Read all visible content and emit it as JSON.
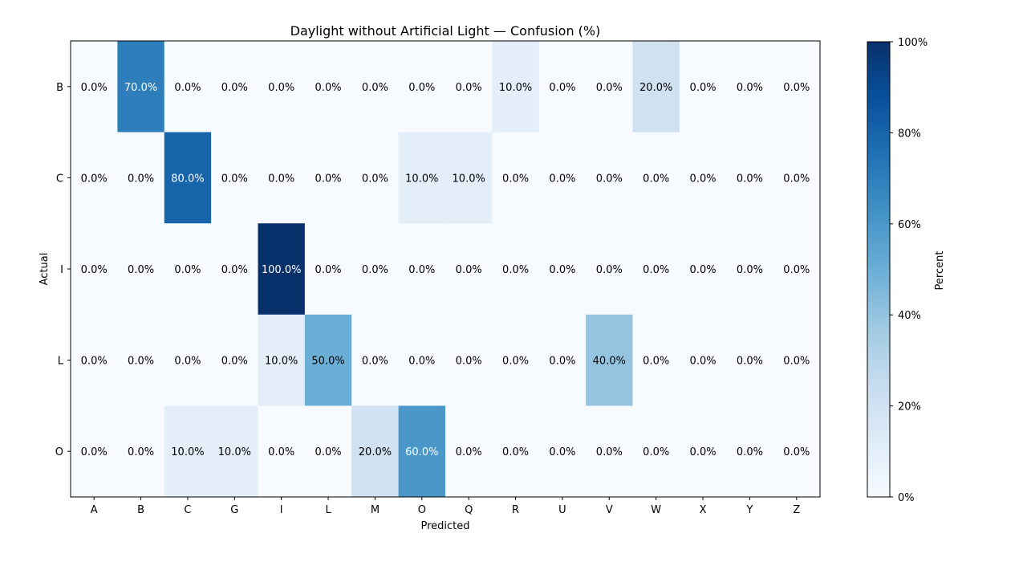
{
  "chart_data": {
    "type": "heatmap",
    "title": "Daylight without Artificial Light — Confusion (%)",
    "xlabel": "Predicted",
    "ylabel": "Actual",
    "x_categories": [
      "A",
      "B",
      "C",
      "G",
      "I",
      "L",
      "M",
      "O",
      "Q",
      "R",
      "U",
      "V",
      "W",
      "X",
      "Y",
      "Z"
    ],
    "y_categories": [
      "B",
      "C",
      "I",
      "L",
      "O"
    ],
    "values": [
      [
        0,
        70,
        0,
        0,
        0,
        0,
        0,
        0,
        0,
        10,
        0,
        0,
        20,
        0,
        0,
        0
      ],
      [
        0,
        0,
        80,
        0,
        0,
        0,
        0,
        10,
        10,
        0,
        0,
        0,
        0,
        0,
        0,
        0
      ],
      [
        0,
        0,
        0,
        0,
        100,
        0,
        0,
        0,
        0,
        0,
        0,
        0,
        0,
        0,
        0,
        0
      ],
      [
        0,
        0,
        0,
        0,
        10,
        50,
        0,
        0,
        0,
        0,
        0,
        40,
        0,
        0,
        0,
        0
      ],
      [
        0,
        0,
        10,
        10,
        0,
        0,
        20,
        60,
        0,
        0,
        0,
        0,
        0,
        0,
        0,
        0
      ]
    ],
    "value_format": "0.0%",
    "colormap": "Blues",
    "vmin": 0,
    "vmax": 100,
    "colorbar": {
      "label": "Percent",
      "ticks": [
        0,
        20,
        40,
        60,
        80,
        100
      ],
      "tick_labels": [
        "0%",
        "20%",
        "40%",
        "60%",
        "80%",
        "100%"
      ]
    }
  }
}
